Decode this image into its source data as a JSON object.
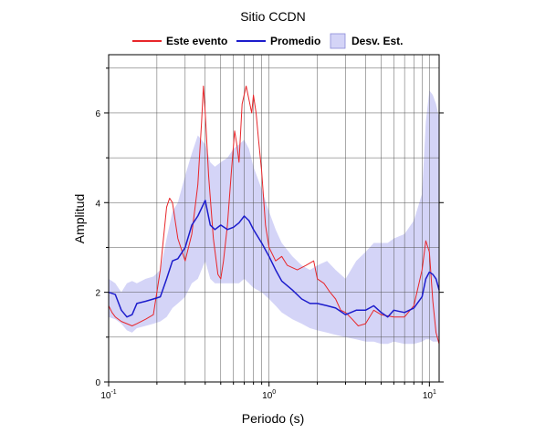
{
  "chart_data": {
    "type": "line",
    "title": "Sitio CCDN",
    "xlabel": "Periodo (s)",
    "ylabel": "Amplitud",
    "x_scale": "log",
    "xlim": [
      0.1,
      11.5
    ],
    "ylim": [
      0,
      7.3
    ],
    "x_ticks": [
      0.1,
      1,
      10
    ],
    "x_tick_labels": [
      {
        "base": "10",
        "exp": "-1"
      },
      {
        "base": "10",
        "exp": "0"
      },
      {
        "base": "10",
        "exp": "1"
      }
    ],
    "y_ticks": [
      0,
      2,
      4,
      6
    ],
    "y_tick_labels": [
      "0",
      "2",
      "4",
      "6"
    ],
    "grid": true,
    "legend": {
      "position": "top",
      "entries": [
        "Este evento",
        "Promedio",
        "Desv. Est."
      ]
    },
    "colors": {
      "event": "#e8262a",
      "mean": "#1c1ccc",
      "band": "#d4d4f7"
    },
    "series": [
      {
        "name": "Este evento",
        "x": [
          0.1,
          0.105,
          0.11,
          0.12,
          0.13,
          0.14,
          0.15,
          0.17,
          0.19,
          0.21,
          0.23,
          0.24,
          0.25,
          0.27,
          0.3,
          0.33,
          0.36,
          0.38,
          0.39,
          0.4,
          0.42,
          0.45,
          0.48,
          0.5,
          0.52,
          0.55,
          0.58,
          0.61,
          0.63,
          0.65,
          0.68,
          0.72,
          0.75,
          0.78,
          0.8,
          0.83,
          0.86,
          0.9,
          0.95,
          1.0,
          1.1,
          1.2,
          1.3,
          1.5,
          1.7,
          1.9,
          2.0,
          2.2,
          2.4,
          2.6,
          2.8,
          3.0,
          3.3,
          3.6,
          4.0,
          4.5,
          5.0,
          6.0,
          7.0,
          8.0,
          9.0,
          9.5,
          10.0,
          10.5,
          11.0,
          11.5
        ],
        "values": [
          1.7,
          1.55,
          1.45,
          1.35,
          1.3,
          1.25,
          1.3,
          1.4,
          1.5,
          2.5,
          3.9,
          4.1,
          4.0,
          3.2,
          2.7,
          3.3,
          4.4,
          5.8,
          6.6,
          6.0,
          4.6,
          3.2,
          2.4,
          2.3,
          2.7,
          3.5,
          4.6,
          5.6,
          5.3,
          4.9,
          6.2,
          6.6,
          6.3,
          6.0,
          6.4,
          6.0,
          5.4,
          4.7,
          3.5,
          3.0,
          2.7,
          2.8,
          2.6,
          2.5,
          2.6,
          2.7,
          2.3,
          2.2,
          2.0,
          1.85,
          1.6,
          1.55,
          1.4,
          1.25,
          1.3,
          1.6,
          1.5,
          1.45,
          1.45,
          1.7,
          2.5,
          3.15,
          2.9,
          1.8,
          1.1,
          0.85
        ]
      },
      {
        "name": "Promedio",
        "x": [
          0.1,
          0.11,
          0.12,
          0.13,
          0.14,
          0.15,
          0.17,
          0.19,
          0.21,
          0.23,
          0.25,
          0.27,
          0.3,
          0.33,
          0.36,
          0.4,
          0.43,
          0.46,
          0.5,
          0.55,
          0.6,
          0.65,
          0.7,
          0.75,
          0.8,
          0.9,
          1.0,
          1.1,
          1.2,
          1.4,
          1.6,
          1.8,
          2.0,
          2.3,
          2.6,
          3.0,
          3.5,
          4.0,
          4.5,
          5.0,
          5.5,
          6.0,
          7.0,
          8.0,
          9.0,
          9.5,
          10.0,
          10.5,
          11.0,
          11.5
        ],
        "values": [
          2.0,
          1.95,
          1.6,
          1.45,
          1.5,
          1.75,
          1.8,
          1.85,
          1.9,
          2.3,
          2.7,
          2.75,
          3.0,
          3.5,
          3.7,
          4.05,
          3.5,
          3.4,
          3.5,
          3.4,
          3.45,
          3.55,
          3.7,
          3.6,
          3.4,
          3.1,
          2.8,
          2.5,
          2.25,
          2.05,
          1.85,
          1.75,
          1.75,
          1.7,
          1.65,
          1.5,
          1.6,
          1.6,
          1.7,
          1.55,
          1.45,
          1.6,
          1.55,
          1.65,
          1.9,
          2.3,
          2.45,
          2.4,
          2.3,
          2.05
        ]
      }
    ],
    "band": {
      "name": "Desv. Est.",
      "x": [
        0.1,
        0.11,
        0.12,
        0.13,
        0.14,
        0.15,
        0.17,
        0.19,
        0.21,
        0.23,
        0.25,
        0.27,
        0.3,
        0.33,
        0.36,
        0.4,
        0.43,
        0.46,
        0.5,
        0.55,
        0.6,
        0.65,
        0.7,
        0.75,
        0.8,
        0.9,
        1.0,
        1.1,
        1.2,
        1.4,
        1.6,
        1.8,
        2.0,
        2.3,
        2.6,
        3.0,
        3.5,
        4.0,
        4.5,
        5.0,
        5.5,
        6.0,
        7.0,
        8.0,
        9.0,
        9.5,
        10.0,
        10.5,
        11.0,
        11.5
      ],
      "upper": [
        2.3,
        2.2,
        2.0,
        2.2,
        2.25,
        2.2,
        2.3,
        2.35,
        2.5,
        3.2,
        3.8,
        4.0,
        4.6,
        5.1,
        5.5,
        5.3,
        4.9,
        4.8,
        4.9,
        5.0,
        5.2,
        5.3,
        5.4,
        5.2,
        4.8,
        4.3,
        3.8,
        3.4,
        3.1,
        2.8,
        2.6,
        2.5,
        2.6,
        2.7,
        2.5,
        2.3,
        2.7,
        2.9,
        3.1,
        3.1,
        3.1,
        3.2,
        3.3,
        3.6,
        4.2,
        5.8,
        6.5,
        6.4,
        6.2,
        5.9
      ],
      "lower": [
        1.45,
        1.4,
        1.3,
        1.15,
        1.1,
        1.2,
        1.25,
        1.3,
        1.35,
        1.45,
        1.65,
        1.75,
        1.9,
        2.2,
        2.3,
        2.7,
        2.3,
        2.2,
        2.2,
        2.2,
        2.2,
        2.2,
        2.3,
        2.2,
        2.1,
        2.0,
        1.85,
        1.7,
        1.55,
        1.4,
        1.3,
        1.2,
        1.15,
        1.1,
        1.05,
        1.0,
        0.95,
        0.9,
        0.9,
        0.85,
        0.85,
        0.9,
        0.85,
        0.85,
        0.9,
        0.95,
        0.95,
        0.9,
        0.9,
        0.9
      ]
    }
  }
}
